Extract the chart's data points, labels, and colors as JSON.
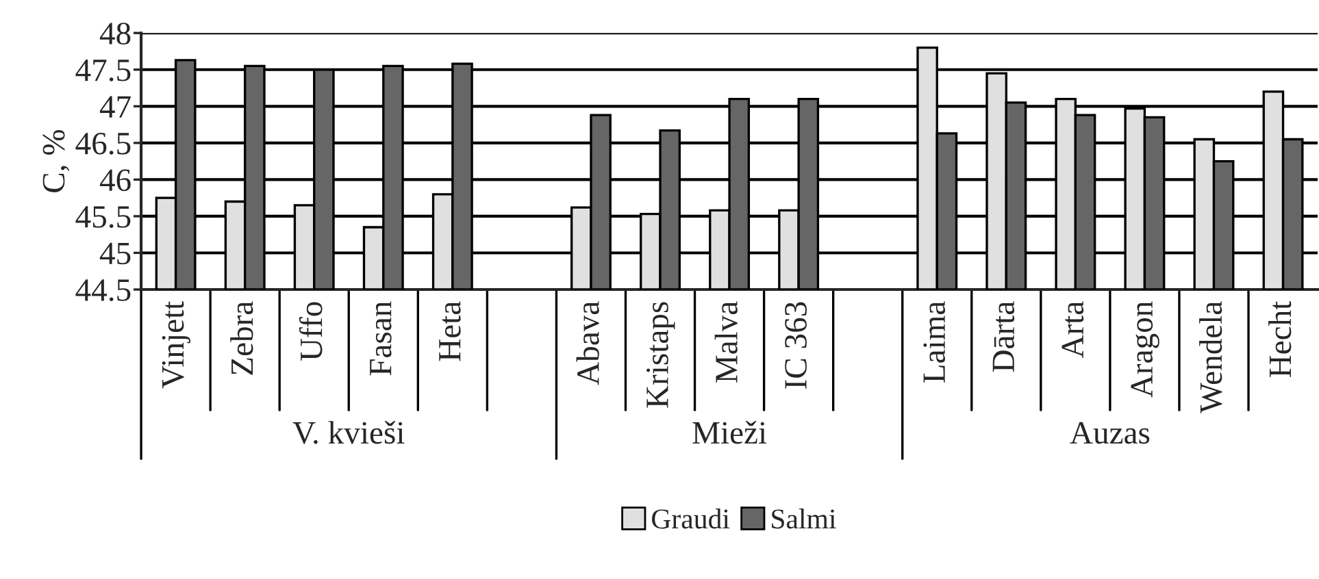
{
  "chart_data": {
    "type": "bar",
    "ylabel": "C, %",
    "categories": [
      "Vinjett",
      "Zebra",
      "Uffo",
      "Fasan",
      "Heta",
      null,
      "Abava",
      "Kristaps",
      "Malva",
      "IC 363",
      null,
      "Laima",
      "Dārta",
      "Arta",
      "Aragon",
      "Wendela",
      "Hecht"
    ],
    "series": [
      {
        "name": "Graudi",
        "color": "#e0e0e0",
        "values": [
          45.75,
          45.7,
          45.65,
          45.35,
          45.8,
          null,
          45.62,
          45.53,
          45.58,
          45.58,
          null,
          47.8,
          47.45,
          47.1,
          46.97,
          46.55,
          47.2
        ]
      },
      {
        "name": "Salmi",
        "color": "#666666",
        "values": [
          47.63,
          47.55,
          47.5,
          47.55,
          47.58,
          null,
          46.88,
          46.67,
          47.1,
          47.1,
          null,
          46.63,
          47.05,
          46.88,
          46.85,
          46.25,
          46.55
        ]
      }
    ],
    "annotations": [
      "V. kvieši",
      "Mieži",
      "Auzas"
    ],
    "ylim": [
      44.5,
      48
    ],
    "yticks": [
      44.5,
      45,
      45.5,
      46,
      46.5,
      47,
      47.5,
      48
    ],
    "grid": "y",
    "legend": "bottom"
  }
}
